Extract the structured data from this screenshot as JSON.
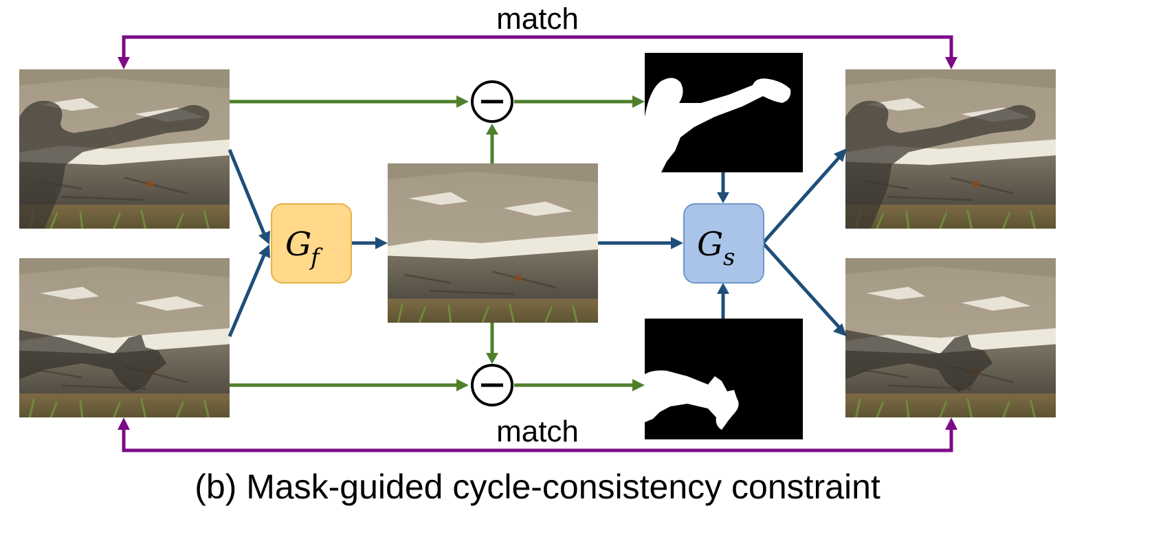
{
  "diagram": {
    "caption": "(b) Mask-guided cycle-consistency constraint",
    "match_top": "match",
    "match_bottom": "match",
    "generator_f": {
      "main": "G",
      "sub": "f"
    },
    "generator_s": {
      "main": "G",
      "sub": "s"
    },
    "colors": {
      "green_arrow": "#4f7f2a",
      "blue_arrow": "#1f4e79",
      "purple_arrow": "#7b0b86",
      "gf_fill": "#ffd88a",
      "gf_stroke": "#e8b24a",
      "gs_fill": "#a9c4e8",
      "gs_stroke": "#6f96c8"
    }
  }
}
